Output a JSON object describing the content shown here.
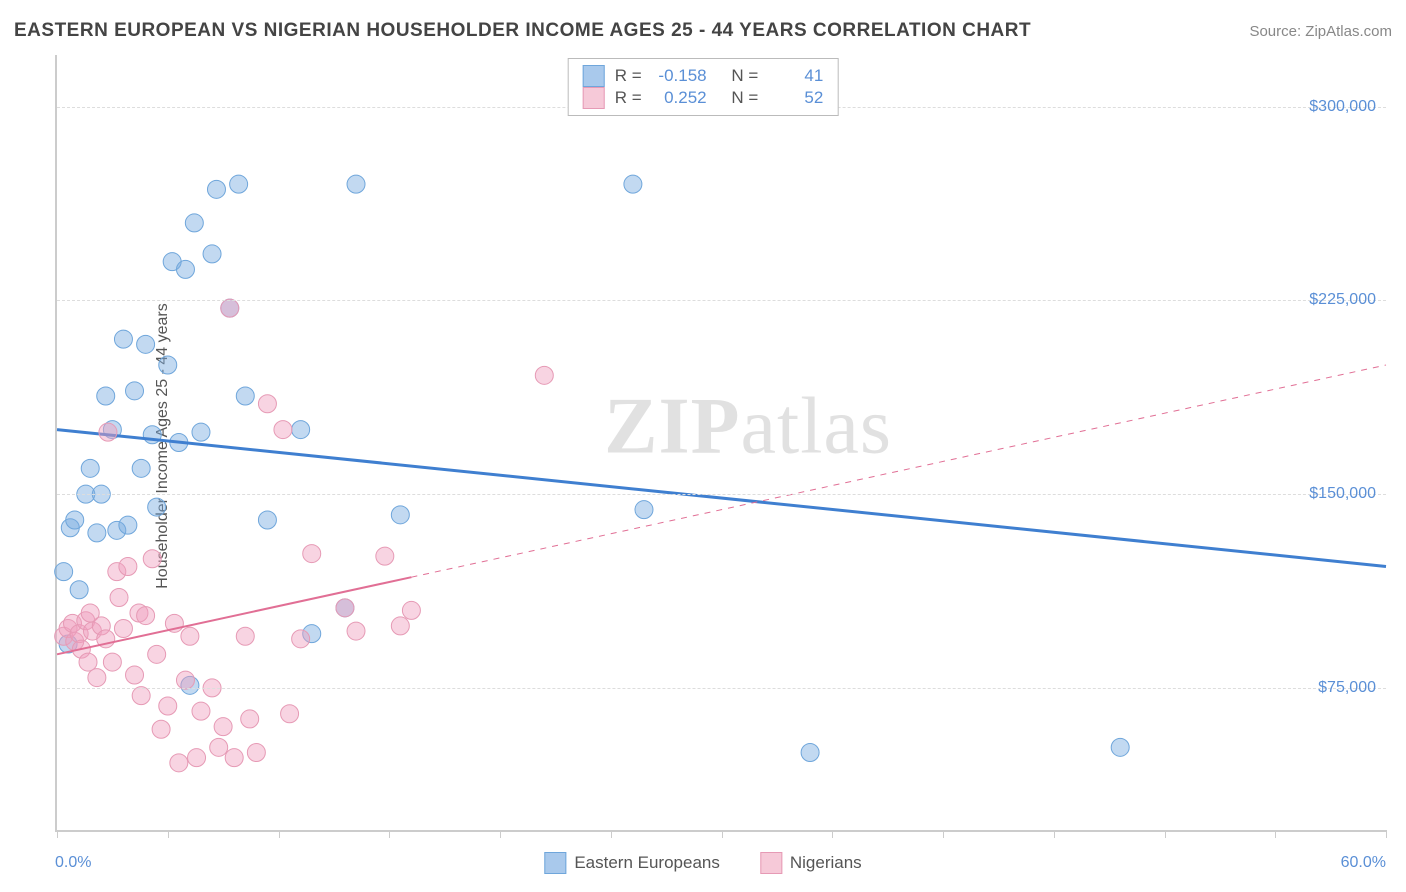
{
  "header": {
    "title": "EASTERN EUROPEAN VS NIGERIAN HOUSEHOLDER INCOME AGES 25 - 44 YEARS CORRELATION CHART",
    "source": "Source: ZipAtlas.com"
  },
  "watermark": {
    "bold": "ZIP",
    "rest": "atlas"
  },
  "chart": {
    "type": "scatter-correlation",
    "ylabel": "Householder Income Ages 25 - 44 years",
    "xlim": [
      0,
      60
    ],
    "ylim": [
      20000,
      320000
    ],
    "y_ticks": [
      75000,
      150000,
      225000,
      300000
    ],
    "y_tick_labels": [
      "$75,000",
      "$150,000",
      "$225,000",
      "$300,000"
    ],
    "x_ticks_pct": [
      0,
      5,
      10,
      15,
      20,
      25,
      30,
      35,
      40,
      45,
      50,
      55,
      60
    ],
    "x_axis_left_label": "0.0%",
    "x_axis_right_label": "60.0%",
    "grid_color": "#dddddd",
    "axis_color": "#cccccc",
    "background_color": "#ffffff",
    "tick_label_color": "#5a8fd6",
    "series": [
      {
        "name": "Eastern Europeans",
        "color_fill": "rgba(120,170,225,0.45)",
        "color_stroke": "#6fa6db",
        "swatch_fill": "#a9c9ec",
        "swatch_border": "#6fa6db",
        "marker_radius": 9,
        "R": "-0.158",
        "N": "41",
        "regression": {
          "x1": 0,
          "y1": 175000,
          "x2": 60,
          "y2": 122000,
          "solid_to_x": 60,
          "stroke": "#3f7fd0",
          "stroke_width": 3
        },
        "points": [
          [
            0.3,
            120000
          ],
          [
            0.5,
            92000
          ],
          [
            0.6,
            137000
          ],
          [
            0.8,
            140000
          ],
          [
            1.0,
            113000
          ],
          [
            1.3,
            150000
          ],
          [
            1.5,
            160000
          ],
          [
            1.8,
            135000
          ],
          [
            2.0,
            150000
          ],
          [
            2.2,
            188000
          ],
          [
            2.5,
            175000
          ],
          [
            2.7,
            136000
          ],
          [
            3.0,
            210000
          ],
          [
            3.2,
            138000
          ],
          [
            3.5,
            190000
          ],
          [
            3.8,
            160000
          ],
          [
            4.0,
            208000
          ],
          [
            4.3,
            173000
          ],
          [
            4.5,
            145000
          ],
          [
            5.0,
            200000
          ],
          [
            5.2,
            240000
          ],
          [
            5.5,
            170000
          ],
          [
            5.8,
            237000
          ],
          [
            6.2,
            255000
          ],
          [
            6.5,
            174000
          ],
          [
            6.0,
            76000
          ],
          [
            7.0,
            243000
          ],
          [
            7.2,
            268000
          ],
          [
            7.8,
            222000
          ],
          [
            8.2,
            270000
          ],
          [
            8.5,
            188000
          ],
          [
            9.5,
            140000
          ],
          [
            11.0,
            175000
          ],
          [
            11.5,
            96000
          ],
          [
            13.0,
            106000
          ],
          [
            13.5,
            270000
          ],
          [
            15.5,
            142000
          ],
          [
            26.0,
            270000
          ],
          [
            26.5,
            144000
          ],
          [
            34.0,
            50000
          ],
          [
            48.0,
            52000
          ]
        ]
      },
      {
        "name": "Nigerians",
        "color_fill": "rgba(240,160,190,0.45)",
        "color_stroke": "#e69ab5",
        "swatch_fill": "#f6c9d8",
        "swatch_border": "#e69ab5",
        "marker_radius": 9,
        "R": "0.252",
        "N": "52",
        "regression": {
          "x1": 0,
          "y1": 88000,
          "x2": 60,
          "y2": 200000,
          "solid_to_x": 16,
          "stroke": "#e16f95",
          "stroke_width": 2
        },
        "points": [
          [
            0.3,
            95000
          ],
          [
            0.5,
            98000
          ],
          [
            0.7,
            100000
          ],
          [
            0.8,
            93000
          ],
          [
            1.0,
            96000
          ],
          [
            1.1,
            90000
          ],
          [
            1.3,
            101000
          ],
          [
            1.4,
            85000
          ],
          [
            1.5,
            104000
          ],
          [
            1.6,
            97000
          ],
          [
            1.8,
            79000
          ],
          [
            2.0,
            99000
          ],
          [
            2.2,
            94000
          ],
          [
            2.3,
            174000
          ],
          [
            2.5,
            85000
          ],
          [
            2.7,
            120000
          ],
          [
            2.8,
            110000
          ],
          [
            3.0,
            98000
          ],
          [
            3.2,
            122000
          ],
          [
            3.5,
            80000
          ],
          [
            3.7,
            104000
          ],
          [
            3.8,
            72000
          ],
          [
            4.0,
            103000
          ],
          [
            4.3,
            125000
          ],
          [
            4.5,
            88000
          ],
          [
            4.7,
            59000
          ],
          [
            5.0,
            68000
          ],
          [
            5.3,
            100000
          ],
          [
            5.5,
            46000
          ],
          [
            5.8,
            78000
          ],
          [
            6.0,
            95000
          ],
          [
            6.3,
            48000
          ],
          [
            6.5,
            66000
          ],
          [
            7.0,
            75000
          ],
          [
            7.3,
            52000
          ],
          [
            7.5,
            60000
          ],
          [
            7.8,
            222000
          ],
          [
            8.0,
            48000
          ],
          [
            8.5,
            95000
          ],
          [
            8.7,
            63000
          ],
          [
            9.0,
            50000
          ],
          [
            9.5,
            185000
          ],
          [
            10.2,
            175000
          ],
          [
            10.5,
            65000
          ],
          [
            11.0,
            94000
          ],
          [
            11.5,
            127000
          ],
          [
            13.0,
            106000
          ],
          [
            13.5,
            97000
          ],
          [
            14.8,
            126000
          ],
          [
            15.5,
            99000
          ],
          [
            16.0,
            105000
          ],
          [
            22.0,
            196000
          ]
        ]
      }
    ]
  },
  "legend": {
    "items": [
      {
        "label": "Eastern Europeans",
        "swatch_fill": "#a9c9ec",
        "swatch_border": "#6fa6db"
      },
      {
        "label": "Nigerians",
        "swatch_fill": "#f6c9d8",
        "swatch_border": "#e69ab5"
      }
    ]
  },
  "statbox": {
    "r_label": "R =",
    "n_label": "N ="
  }
}
